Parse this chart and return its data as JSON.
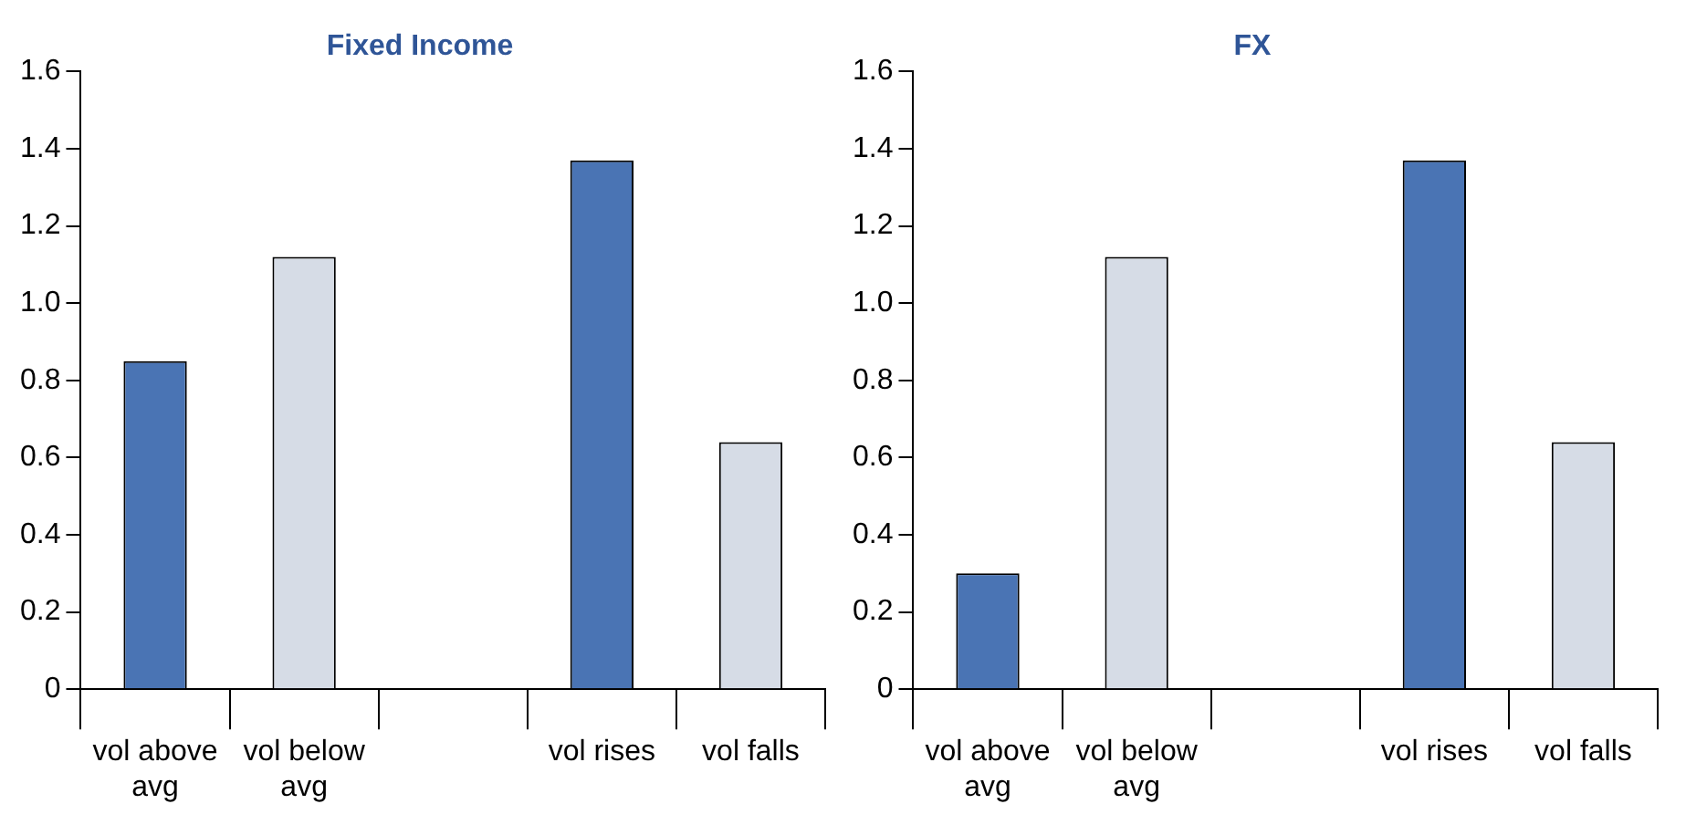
{
  "chart_data": [
    {
      "type": "bar",
      "title": "Fixed Income",
      "categories": [
        "vol above avg",
        "vol below avg",
        null,
        "vol rises",
        "vol falls"
      ],
      "values": [
        0.85,
        1.12,
        null,
        1.37,
        0.64
      ],
      "colors": [
        "#4a74b4",
        "#d6dce6",
        "#4a74b4",
        "#4a74b4",
        "#d6dce6"
      ],
      "ylim": [
        0,
        1.6
      ],
      "yticks": [
        0,
        0.2,
        0.4,
        0.6,
        0.8,
        {
          "value": 1,
          "label": "1.0"
        },
        1.2,
        1.4,
        1.6
      ],
      "grid": false,
      "legend": false
    },
    {
      "type": "bar",
      "title": "FX",
      "categories": [
        "vol above avg",
        "vol below avg",
        null,
        "vol rises",
        "vol falls"
      ],
      "values": [
        0.3,
        1.12,
        null,
        1.37,
        0.64
      ],
      "colors": [
        "#4a74b4",
        "#d6dce6",
        "#4a74b4",
        "#4a74b4",
        "#d6dce6"
      ],
      "ylim": [
        0,
        1.6
      ],
      "yticks": [
        0,
        0.2,
        0.4,
        0.6,
        0.8,
        {
          "value": 1,
          "label": "1.0"
        },
        1.2,
        1.4,
        1.6
      ],
      "grid": false,
      "legend": false
    }
  ]
}
